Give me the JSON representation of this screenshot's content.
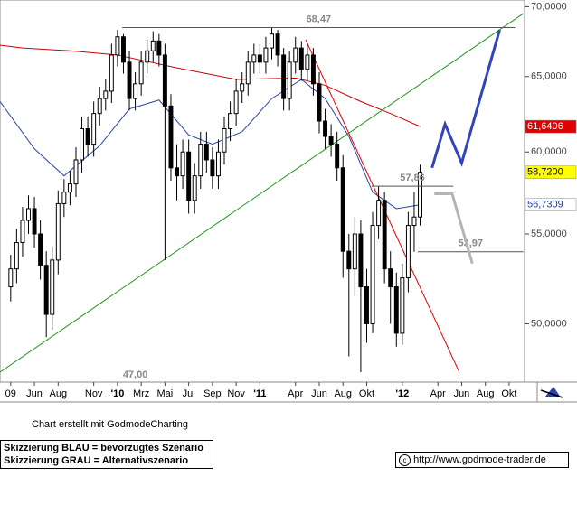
{
  "chart_data": {
    "type": "candlestick",
    "y_scale": "log",
    "xlim": [
      2.1,
      46.3
    ],
    "ylim": [
      47,
      70.5
    ],
    "xticks": [
      {
        "value": 3,
        "label": "09"
      },
      {
        "value": 5,
        "label": "Jun"
      },
      {
        "value": 7,
        "label": "Aug"
      },
      {
        "value": 10,
        "label": "Nov"
      },
      {
        "value": 12,
        "label": "'10"
      },
      {
        "value": 14,
        "label": "Mrz"
      },
      {
        "value": 16,
        "label": "Mai"
      },
      {
        "value": 18,
        "label": "Jul"
      },
      {
        "value": 20,
        "label": "Sep"
      },
      {
        "value": 22,
        "label": "Nov"
      },
      {
        "value": 24,
        "label": "'11"
      },
      {
        "value": 27,
        "label": "Apr"
      },
      {
        "value": 29,
        "label": "Jun"
      },
      {
        "value": 31,
        "label": "Aug"
      },
      {
        "value": 33,
        "label": "Okt"
      },
      {
        "value": 36,
        "label": "'12"
      },
      {
        "value": 39,
        "label": "Apr"
      },
      {
        "value": 41,
        "label": "Jun"
      },
      {
        "value": 43,
        "label": "Aug"
      },
      {
        "value": 45,
        "label": "Okt"
      }
    ],
    "yticks": [
      {
        "value": 50,
        "label": "50,0000"
      },
      {
        "value": 55,
        "label": "55,0000"
      },
      {
        "value": 60,
        "label": "60,0000"
      },
      {
        "value": 65,
        "label": "65,0000"
      },
      {
        "value": 70,
        "label": "70,0000"
      }
    ],
    "candles": {
      "color": "#000000",
      "x": [
        3,
        3.5,
        4,
        4.5,
        5,
        5.5,
        6,
        6.5,
        7,
        7.5,
        8,
        8.5,
        9,
        9.5,
        10,
        10.5,
        11,
        11.5,
        12,
        12.5,
        13,
        13.5,
        14,
        14.5,
        15,
        15.5,
        16,
        16.5,
        17,
        17.5,
        18,
        18.5,
        19,
        19.5,
        20,
        20.5,
        21,
        21.5,
        22,
        22.5,
        23,
        23.5,
        24,
        24.5,
        25,
        25.5,
        26,
        26.5,
        27,
        27.5,
        28,
        28.5,
        29,
        29.5,
        30,
        30.5,
        31,
        31.5,
        32,
        32.5,
        33,
        33.5,
        34,
        34.5,
        35,
        35.5,
        36,
        36.5,
        37,
        37.5
      ],
      "open": [
        52.0,
        53.0,
        54.5,
        55.8,
        56.5,
        55.0,
        53.2,
        50.5,
        53.5,
        56.8,
        57.5,
        58.0,
        59.5,
        61.5,
        60.5,
        62.5,
        63.5,
        64.0,
        66.5,
        67.8,
        66.0,
        63.5,
        64.5,
        66.0,
        66.8,
        67.5,
        66.5,
        63.0,
        59.0,
        58.5,
        60.0,
        57.0,
        58.5,
        60.5,
        59.5,
        58.5,
        60.0,
        61.5,
        62.5,
        64.0,
        64.5,
        66.0,
        66.5,
        66.0,
        67.0,
        68.0,
        66.5,
        63.5,
        66.0,
        67.0,
        65.5,
        66.5,
        64.5,
        62.0,
        61.0,
        60.5,
        59.0,
        54.0,
        53.0,
        55.0,
        52.0,
        50.0,
        55.5,
        57.0,
        53.0,
        52.0,
        49.5,
        52.5,
        55.5,
        56.0
      ],
      "high": [
        53.8,
        55.3,
        56.6,
        57.3,
        57.2,
        55.8,
        54.0,
        54.3,
        57.6,
        58.3,
        58.8,
        60.3,
        62.3,
        62.3,
        63.3,
        64.3,
        64.8,
        67.3,
        68.3,
        68.0,
        66.8,
        65.3,
        66.8,
        67.6,
        68.2,
        68.0,
        67.3,
        63.8,
        60.5,
        60.8,
        60.8,
        59.3,
        61.3,
        61.3,
        60.3,
        60.8,
        62.3,
        63.3,
        64.8,
        65.3,
        66.8,
        67.3,
        67.3,
        67.8,
        68.47,
        68.3,
        67.0,
        66.8,
        67.8,
        67.5,
        67.3,
        67.0,
        65.3,
        62.8,
        61.8,
        61.3,
        59.8,
        55.0,
        56.0,
        55.8,
        53.0,
        56.3,
        57.86,
        57.5,
        54.0,
        52.8,
        53.3,
        56.3,
        57.5,
        59.2
      ],
      "low": [
        51.2,
        52.2,
        53.7,
        55.0,
        54.2,
        52.4,
        49.3,
        49.7,
        52.7,
        56.0,
        56.7,
        57.2,
        58.7,
        59.7,
        59.7,
        61.7,
        62.7,
        63.2,
        65.7,
        65.2,
        62.7,
        62.7,
        63.7,
        65.2,
        66.0,
        65.7,
        53.5,
        58.2,
        57.0,
        57.7,
        56.2,
        56.2,
        57.7,
        58.7,
        57.7,
        57.7,
        59.2,
        60.7,
        61.7,
        63.2,
        63.7,
        65.2,
        65.2,
        65.2,
        66.2,
        65.7,
        62.7,
        62.7,
        65.2,
        64.7,
        64.7,
        63.7,
        61.2,
        60.2,
        59.7,
        58.2,
        52.5,
        48.3,
        51.5,
        47.5,
        49.0,
        49.5,
        54.7,
        52.2,
        50.0,
        48.8,
        48.9,
        51.7,
        53.97,
        55.5
      ],
      "close": [
        53.0,
        54.5,
        55.8,
        56.5,
        55.0,
        53.2,
        50.5,
        53.5,
        56.8,
        57.5,
        58.0,
        59.5,
        61.5,
        60.5,
        62.5,
        63.5,
        64.0,
        66.5,
        67.8,
        66.0,
        63.5,
        64.5,
        66.0,
        66.8,
        67.5,
        66.5,
        63.0,
        59.0,
        58.5,
        60.0,
        57.0,
        58.5,
        60.5,
        59.5,
        58.5,
        60.0,
        61.5,
        62.5,
        64.0,
        64.5,
        66.0,
        66.5,
        66.0,
        67.0,
        68.0,
        66.5,
        63.5,
        66.0,
        67.0,
        65.5,
        66.5,
        64.5,
        62.0,
        61.0,
        60.5,
        59.0,
        54.0,
        53.0,
        55.0,
        52.0,
        50.0,
        55.5,
        57.0,
        53.0,
        52.0,
        49.5,
        52.5,
        55.5,
        56.0,
        58.72
      ]
    },
    "lines": [
      {
        "color": "#cc0000",
        "x": [
          2.1,
          4,
          8,
          12,
          17,
          22,
          27,
          29.5,
          32.5,
          35,
          37.5
        ],
        "values": [
          67.2,
          67.0,
          66.8,
          66.5,
          65.6,
          64.8,
          64.9,
          64.4,
          63.3,
          62.5,
          61.64
        ]
      },
      {
        "color": "#2a44a8",
        "x": [
          2.1,
          5,
          7.5,
          10.5,
          13,
          15.5,
          18,
          20,
          22.5,
          25,
          27.5,
          29.5,
          31.5,
          33.5,
          35.5,
          37.5
        ],
        "values": [
          63.3,
          60.2,
          58.5,
          60.4,
          62.8,
          63.4,
          61.1,
          60.5,
          61.3,
          63.5,
          64.8,
          63.5,
          61.0,
          57.5,
          56.5,
          56.73
        ]
      },
      {
        "color": "#1a9a1a",
        "x": [
          2.1,
          46.2
        ],
        "values": [
          47.5,
          69.5
        ]
      },
      {
        "color": "#e00000",
        "x": [
          27.85,
          40.8
        ],
        "values": [
          67.6,
          47.5
        ]
      }
    ],
    "scenarios": [
      {
        "color": "#3344bb",
        "x": [
          38.5,
          39.6,
          41.0,
          44.2
        ],
        "values": [
          59.0,
          61.8,
          59.3,
          68.3
        ]
      },
      {
        "color": "#b4b4b4",
        "x": [
          38.7,
          40.2,
          41.9
        ],
        "values": [
          57.4,
          57.4,
          53.3
        ]
      }
    ],
    "levels": [
      {
        "value": 68.47,
        "label": "68,47",
        "x": [
          12.4,
          45.5
        ]
      },
      {
        "value": 57.86,
        "label": "57,86",
        "x": [
          33.4,
          40.3
        ]
      },
      {
        "value": 53.97,
        "label": "53,97",
        "x": [
          37.3,
          46.2
        ]
      }
    ],
    "low_label": {
      "value": 47,
      "label": "47,00",
      "x": 13.5
    },
    "price_labels": [
      {
        "value": 61.6406,
        "label": "61,6406",
        "color": "#e00000",
        "text_color": "#ffffff"
      },
      {
        "value": 58.72,
        "label": "58,7200",
        "color": "#ffff00",
        "text_color": "#000000"
      },
      {
        "value": 56.7309,
        "label": "56,7309",
        "color": "#ffffff",
        "text_color": "#1a3aa0"
      }
    ]
  },
  "footer": {
    "credit": "Chart erstellt mit GodmodeCharting",
    "legend": [
      "Skizzierung BLAU = bevorzugtes Szenario",
      "Skizzierung GRAU = Alternativszenario"
    ],
    "url": "http://www.godmode-trader.de"
  }
}
